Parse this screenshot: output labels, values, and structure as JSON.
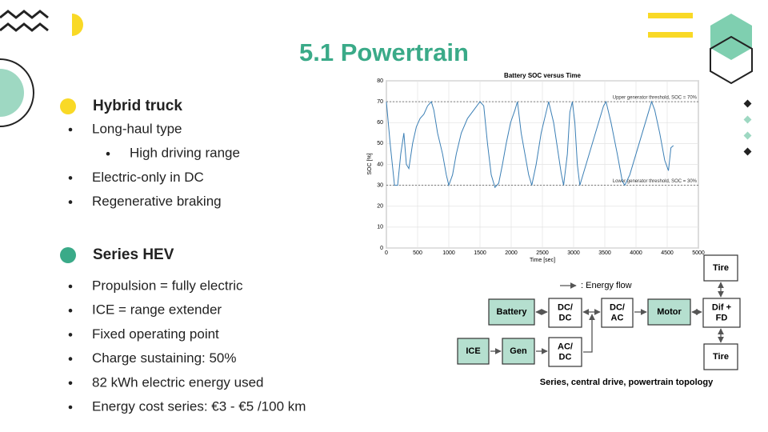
{
  "slide": {
    "title": "5.1 Powertrain",
    "sections": [
      {
        "heading": "Hybrid truck",
        "marker_color": "#f9d926",
        "bullets": [
          {
            "text": "Long-haul type",
            "level": 1
          },
          {
            "text": "High driving range",
            "level": 2
          },
          {
            "text": "Electric-only in DC",
            "level": 1
          },
          {
            "text": "Regenerative braking",
            "level": 1
          }
        ]
      },
      {
        "heading": "Series HEV",
        "marker_color": "#3aaa88",
        "bullets": [
          {
            "text": "Propulsion = fully electric",
            "level": 1
          },
          {
            "text": "ICE  = range extender",
            "level": 1
          },
          {
            "text": "Fixed operating point",
            "level": 1
          },
          {
            "text": "Charge sustaining: 50%",
            "level": 1
          },
          {
            "text": "82 kWh electric energy used",
            "level": 1
          },
          {
            "text": "Energy cost series: €3 - €5 /100 km",
            "level": 1
          }
        ]
      }
    ]
  },
  "chart_data": {
    "type": "line",
    "title": "Battery SOC versus Time",
    "xlabel": "Time [sec]",
    "ylabel": "SOC [%]",
    "x": [
      0,
      60,
      130,
      180,
      230,
      280,
      320,
      360,
      420,
      480,
      540,
      600,
      660,
      720,
      760,
      820,
      900,
      960,
      1000,
      1060,
      1120,
      1200,
      1300,
      1400,
      1500,
      1560,
      1620,
      1680,
      1740,
      1800,
      1860,
      1920,
      1990,
      2060,
      2100,
      2160,
      2220,
      2280,
      2330,
      2400,
      2480,
      2560,
      2600,
      2680,
      2740,
      2800,
      2840,
      2900,
      2940,
      2980,
      3020,
      3060,
      3100,
      3200,
      3300,
      3400,
      3480,
      3520,
      3600,
      3700,
      3780,
      3820,
      3900,
      4000,
      4100,
      4200,
      4250,
      4300,
      4380,
      4460,
      4520,
      4560,
      4600
    ],
    "series": [
      {
        "name": "SOC",
        "color": "#3b7fb5",
        "values": [
          70,
          50,
          30,
          30,
          45,
          55,
          40,
          38,
          50,
          58,
          62,
          64,
          68,
          70,
          66,
          55,
          45,
          35,
          30,
          35,
          45,
          55,
          62,
          66,
          70,
          68,
          50,
          35,
          29,
          31,
          40,
          50,
          60,
          66,
          70,
          55,
          45,
          35,
          30,
          40,
          55,
          65,
          70,
          60,
          48,
          36,
          30,
          45,
          65,
          70,
          60,
          40,
          30,
          40,
          50,
          60,
          68,
          70,
          60,
          45,
          32,
          30,
          35,
          45,
          55,
          65,
          70,
          66,
          55,
          42,
          37,
          48,
          49
        ]
      }
    ],
    "annotations": [
      {
        "text": "Upper generator threshold, SOC = 70%",
        "y": 70
      },
      {
        "text": "Lower generator threshold, SOC = 30%",
        "y": 30
      }
    ],
    "xlim": [
      0,
      5000
    ],
    "xticks": [
      0,
      500,
      1000,
      1500,
      2000,
      2500,
      3000,
      3500,
      4000,
      4500,
      5000
    ],
    "ylim": [
      0,
      80
    ],
    "yticks": [
      0,
      10,
      20,
      30,
      40,
      50,
      60,
      70,
      80
    ],
    "grid": true
  },
  "diagram": {
    "legend": ": Energy flow",
    "caption": "Series, central drive, powertrain topology",
    "nodes": [
      {
        "label": [
          "Battery"
        ],
        "fill": "#b5dfcf"
      },
      {
        "label": [
          "DC/",
          "DC"
        ],
        "fill": "#ffffff"
      },
      {
        "label": [
          "DC/",
          "AC"
        ],
        "fill": "#ffffff"
      },
      {
        "label": [
          "Motor"
        ],
        "fill": "#b5dfcf"
      },
      {
        "label": [
          "Dif +",
          "FD"
        ],
        "fill": "#ffffff"
      },
      {
        "label": [
          "Tire"
        ],
        "fill": "#ffffff"
      },
      {
        "label": [
          "Tire"
        ],
        "fill": "#ffffff"
      },
      {
        "label": [
          "ICE"
        ],
        "fill": "#b5dfcf"
      },
      {
        "label": [
          "Gen"
        ],
        "fill": "#b5dfcf"
      },
      {
        "label": [
          "AC/",
          "DC"
        ],
        "fill": "#ffffff"
      }
    ]
  }
}
